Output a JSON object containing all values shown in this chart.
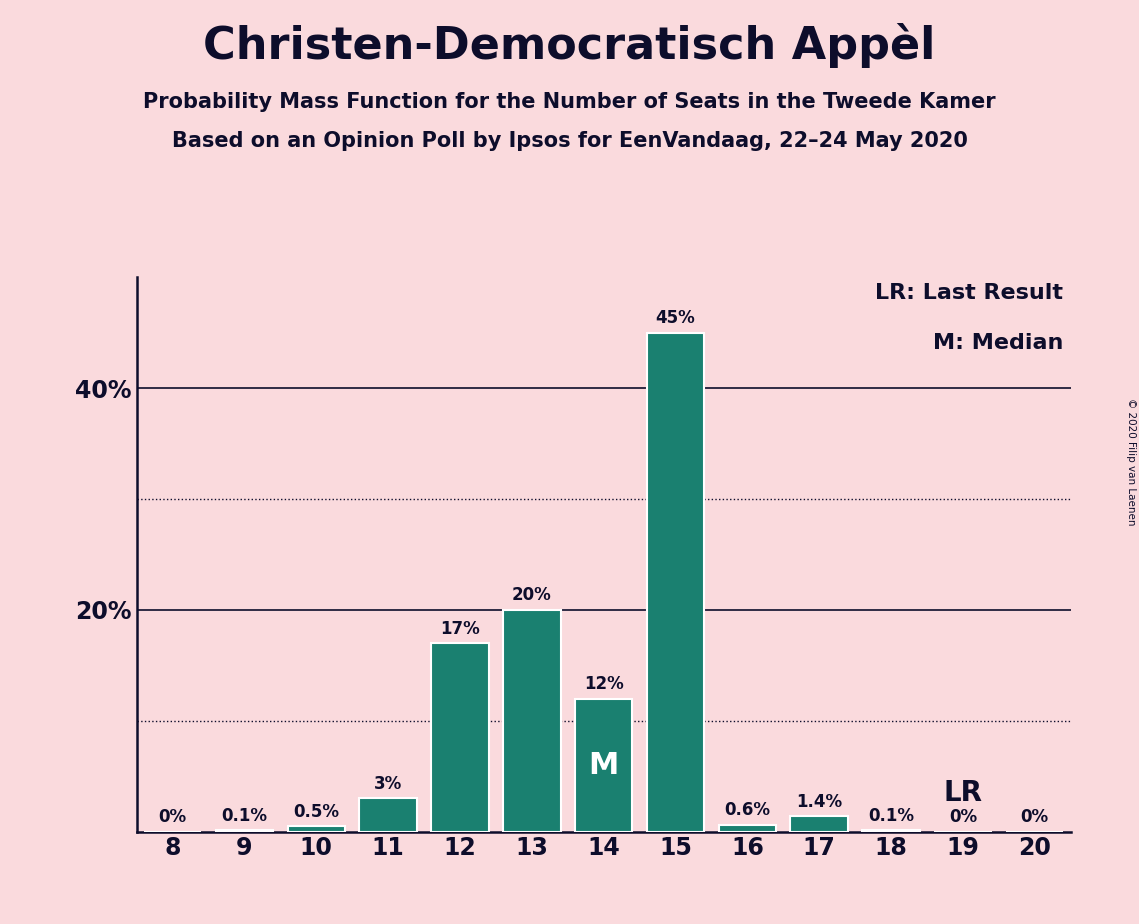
{
  "title": "Christen-Democratisch Appèl",
  "subtitle1": "Probability Mass Function for the Number of Seats in the Tweede Kamer",
  "subtitle2": "Based on an Opinion Poll by Ipsos for EenVandaag, 22–24 May 2020",
  "copyright": "© 2020 Filip van Laenen",
  "seats": [
    8,
    9,
    10,
    11,
    12,
    13,
    14,
    15,
    16,
    17,
    18,
    19,
    20
  ],
  "probabilities": [
    0.0,
    0.1,
    0.5,
    3.0,
    17.0,
    20.0,
    12.0,
    45.0,
    0.6,
    1.4,
    0.1,
    0.0,
    0.0
  ],
  "labels": [
    "0%",
    "0.1%",
    "0.5%",
    "3%",
    "17%",
    "20%",
    "12%",
    "45%",
    "0.6%",
    "1.4%",
    "0.1%",
    "0%",
    "0%"
  ],
  "bar_color": "#1a8070",
  "background_color": "#FADADD",
  "text_color": "#0d0d2b",
  "median_seat": 14,
  "last_result_seat": 19,
  "ylim": [
    0,
    50
  ],
  "solid_gridlines": [
    20,
    40
  ],
  "dotted_gridlines": [
    10,
    30
  ],
  "legend_lr": "LR: Last Result",
  "legend_m": "M: Median",
  "bar_width": 0.8
}
